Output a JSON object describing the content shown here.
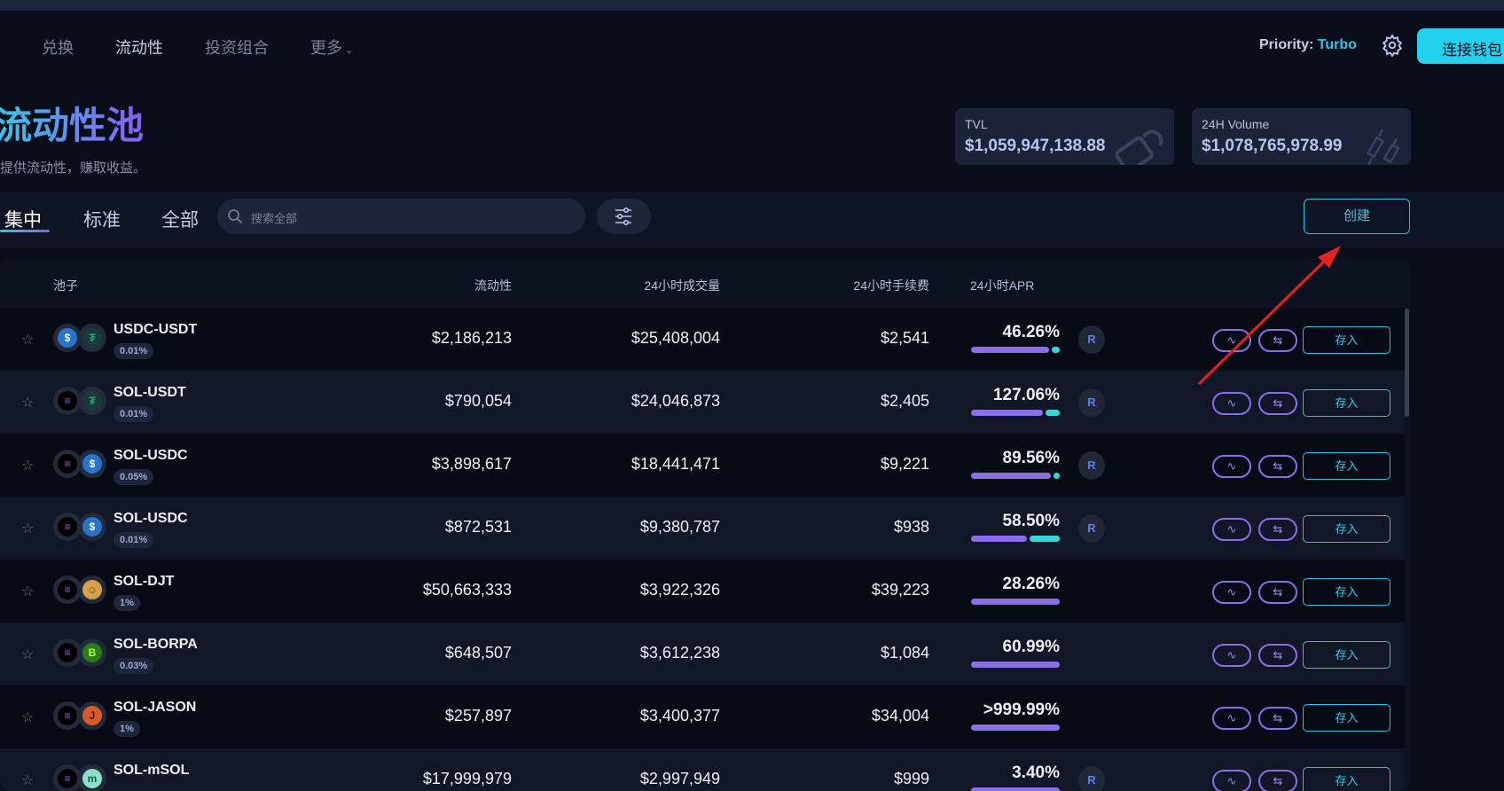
{
  "nav": {
    "items": [
      "兑换",
      "流动性",
      "投资组合",
      "更多"
    ],
    "active": "流动性"
  },
  "header": {
    "priority_label": "Priority:",
    "priority_value": "Turbo",
    "connect_label": "连接钱包"
  },
  "hero": {
    "title": "流动性池",
    "subtitle": "提供流动性，赚取收益。"
  },
  "stats": [
    {
      "label": "TVL",
      "value": "$1,059,947,138.88",
      "icon": "lock-icon"
    },
    {
      "label": "24H Volume",
      "value": "$1,078,765,978.99",
      "icon": "candlestick-icon"
    }
  ],
  "tabs": [
    "集中",
    "标准",
    "全部"
  ],
  "search": {
    "placeholder": "搜索全部"
  },
  "create_label": "创建",
  "columns": [
    "池子",
    "流动性",
    "24小时成交量",
    "24小时手续费",
    "24小时APR"
  ],
  "deposit_label": "存入",
  "colors": {
    "accent_cyan": "#22d1ee",
    "accent_purple": "#8b6ee8",
    "bg": "#0a0e1a"
  },
  "pools": [
    {
      "name": "USDC-USDT",
      "fee": "0.01%",
      "liquidity": "$2,186,213",
      "volume": "$25,408,004",
      "fees": "$2,541",
      "apr": "46.26%",
      "apr_split": [
        0.91,
        0.09
      ],
      "tokens": [
        "usdc",
        "usdt"
      ],
      "reward": true
    },
    {
      "name": "SOL-USDT",
      "fee": "0.01%",
      "liquidity": "$790,054",
      "volume": "$24,046,873",
      "fees": "$2,405",
      "apr": "127.06%",
      "apr_split": [
        0.84,
        0.16
      ],
      "tokens": [
        "sol",
        "usdt"
      ],
      "reward": true
    },
    {
      "name": "SOL-USDC",
      "fee": "0.05%",
      "liquidity": "$3,898,617",
      "volume": "$18,441,471",
      "fees": "$9,221",
      "apr": "89.56%",
      "apr_split": [
        0.97,
        0.03
      ],
      "tokens": [
        "sol",
        "usdc"
      ],
      "reward": true
    },
    {
      "name": "SOL-USDC",
      "fee": "0.01%",
      "liquidity": "$872,531",
      "volume": "$9,380,787",
      "fees": "$938",
      "apr": "58.50%",
      "apr_split": [
        0.65,
        0.35
      ],
      "tokens": [
        "sol",
        "usdc"
      ],
      "reward": true
    },
    {
      "name": "SOL-DJT",
      "fee": "1%",
      "liquidity": "$50,663,333",
      "volume": "$3,922,326",
      "fees": "$39,223",
      "apr": "28.26%",
      "apr_split": [
        1,
        0
      ],
      "tokens": [
        "sol",
        "djt"
      ],
      "reward": false
    },
    {
      "name": "SOL-BORPA",
      "fee": "0.03%",
      "liquidity": "$648,507",
      "volume": "$3,612,238",
      "fees": "$1,084",
      "apr": "60.99%",
      "apr_split": [
        1,
        0
      ],
      "tokens": [
        "sol",
        "borpa"
      ],
      "reward": false
    },
    {
      "name": "SOL-JASON",
      "fee": "1%",
      "liquidity": "$257,897",
      "volume": "$3,400,377",
      "fees": "$34,004",
      "apr": ">999.99%",
      "apr_split": [
        1,
        0
      ],
      "tokens": [
        "sol",
        "jason"
      ],
      "reward": false
    },
    {
      "name": "SOL-mSOL",
      "fee": "",
      "liquidity": "$17,999,979",
      "volume": "$2,997,949",
      "fees": "$999",
      "apr": "3.40%",
      "apr_split": [
        1,
        0
      ],
      "tokens": [
        "sol",
        "msol"
      ],
      "reward": true
    }
  ]
}
